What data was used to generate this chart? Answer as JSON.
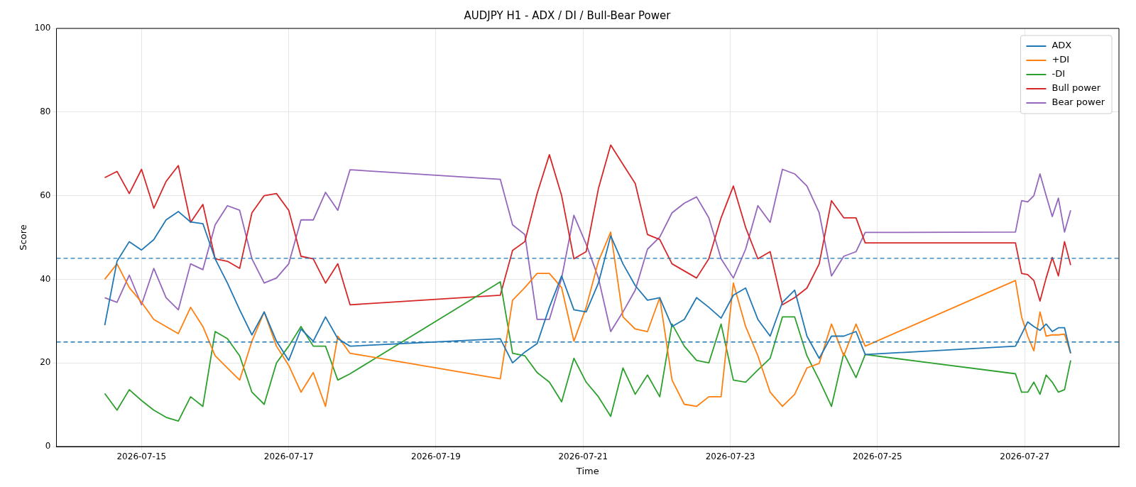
{
  "chart_data": {
    "type": "line",
    "title": "AUDJPY H1 - ADX / DI / Bull-Bear Power",
    "xlabel": "Time",
    "ylabel": "Score",
    "x": [
      "2026-07-14T12:00",
      "2026-07-14T16:00",
      "2026-07-14T20:00",
      "2026-07-15T00:00",
      "2026-07-15T04:00",
      "2026-07-15T08:00",
      "2026-07-15T12:00",
      "2026-07-15T16:00",
      "2026-07-15T20:00",
      "2026-07-16T00:00",
      "2026-07-16T04:00",
      "2026-07-16T08:00",
      "2026-07-16T12:00",
      "2026-07-16T16:00",
      "2026-07-16T20:00",
      "2026-07-17T00:00",
      "2026-07-17T04:00",
      "2026-07-17T08:00",
      "2026-07-17T12:00",
      "2026-07-17T16:00",
      "2026-07-17T20:00",
      "2026-07-19T21:00",
      "2026-07-20T01:00",
      "2026-07-20T05:00",
      "2026-07-20T09:00",
      "2026-07-20T13:00",
      "2026-07-20T17:00",
      "2026-07-20T21:00",
      "2026-07-21T01:00",
      "2026-07-21T05:00",
      "2026-07-21T09:00",
      "2026-07-21T13:00",
      "2026-07-21T17:00",
      "2026-07-21T21:00",
      "2026-07-22T01:00",
      "2026-07-22T05:00",
      "2026-07-22T09:00",
      "2026-07-22T13:00",
      "2026-07-22T17:00",
      "2026-07-22T21:00",
      "2026-07-23T01:00",
      "2026-07-23T05:00",
      "2026-07-23T09:00",
      "2026-07-23T13:00",
      "2026-07-23T17:00",
      "2026-07-23T21:00",
      "2026-07-24T01:00",
      "2026-07-24T05:00",
      "2026-07-24T09:00",
      "2026-07-24T13:00",
      "2026-07-24T17:00",
      "2026-07-24T20:00",
      "2026-07-26T21:00",
      "2026-07-26T23:00",
      "2026-07-27T01:00",
      "2026-07-27T03:00",
      "2026-07-27T05:00",
      "2026-07-27T07:00",
      "2026-07-27T09:00",
      "2026-07-27T11:00",
      "2026-07-27T13:00",
      "2026-07-27T15:00"
    ],
    "series": [
      {
        "name": "ADX",
        "color": "#1f77b4",
        "values": [
          29,
          44.3,
          49,
          47,
          49.5,
          54.2,
          56.2,
          53.7,
          53.3,
          44.9,
          39.1,
          32.7,
          26.7,
          32.2,
          25.2,
          20.6,
          28.1,
          25.2,
          31,
          25.8,
          24,
          25.8,
          20,
          22.6,
          24.6,
          33.3,
          40.8,
          32.7,
          32.2,
          39.1,
          50.4,
          43.7,
          38.5,
          35,
          35.6,
          28.7,
          30.4,
          35.6,
          33.3,
          30.7,
          36.2,
          37.9,
          30.4,
          26.4,
          34.5,
          37.4,
          26.4,
          21.1,
          26.4,
          26.4,
          27.5,
          22,
          24,
          26.9,
          29.8,
          28.7,
          27.8,
          29.3,
          27.5,
          28.4,
          28.4,
          22.3
        ]
      },
      {
        "name": "+DI",
        "color": "#ff7f0e",
        "values": [
          40,
          43.7,
          38,
          34.5,
          30.4,
          28.7,
          27,
          33.3,
          28.7,
          21.7,
          18.8,
          15.9,
          25.2,
          32.2,
          24,
          19.4,
          13,
          17.7,
          9.6,
          26.4,
          22.3,
          16.2,
          35,
          38,
          41.4,
          41.4,
          38,
          25.2,
          33.3,
          44.3,
          51.3,
          31,
          28.1,
          27.5,
          35.6,
          15.9,
          10.1,
          9.6,
          11.9,
          11.9,
          39.1,
          28.7,
          21.7,
          13,
          9.6,
          12.5,
          18.8,
          19.9,
          29.3,
          21.7,
          29.3,
          24,
          39.7,
          31,
          26.4,
          22.9,
          32.2,
          26.4,
          26.7,
          26.7,
          26.9,
          22.3
        ]
      },
      {
        "name": "-DI",
        "color": "#2ca02c",
        "values": [
          12.7,
          8.7,
          13.6,
          11,
          8.7,
          7,
          6.1,
          11.9,
          9.6,
          27.5,
          25.8,
          21.7,
          13,
          10.1,
          20,
          24,
          28.7,
          24,
          24,
          15.9,
          17.4,
          39.4,
          22.3,
          21.7,
          17.7,
          15.4,
          10.7,
          21.1,
          15.4,
          11.9,
          7.2,
          18.8,
          12.5,
          17.1,
          11.9,
          29.3,
          24,
          20.6,
          20,
          29.3,
          15.9,
          15.4,
          18.3,
          21.1,
          31,
          31,
          21.7,
          15.9,
          9.6,
          22.3,
          16.5,
          22,
          17.4,
          13,
          13,
          15.4,
          12.5,
          17.1,
          15.4,
          13,
          13.6,
          20.6
        ]
      },
      {
        "name": "Bull power",
        "color": "#d62728",
        "values": [
          64.3,
          65.8,
          60.5,
          66.3,
          57,
          63.4,
          67.2,
          53.6,
          57.9,
          44.9,
          44.3,
          42.6,
          55.9,
          60,
          60.5,
          56.5,
          45.5,
          44.9,
          39.1,
          43.7,
          33.9,
          36.2,
          46.9,
          49,
          60.5,
          69.8,
          60,
          44.9,
          46.6,
          61.7,
          72.1,
          67.5,
          62.9,
          50.7,
          49.5,
          43.7,
          42,
          40.3,
          44.9,
          54.7,
          62.3,
          52.4,
          44.9,
          46.6,
          33.9,
          35.6,
          37.9,
          43.7,
          58.8,
          54.7,
          54.7,
          48.7,
          48.7,
          41.4,
          41.1,
          39.7,
          34.8,
          40.3,
          45.2,
          40.8,
          49,
          43.4
        ]
      },
      {
        "name": "Bear power",
        "color": "#9467bd",
        "values": [
          35.6,
          34.5,
          41,
          33.9,
          42.6,
          35.6,
          32.7,
          43.7,
          42.3,
          53,
          57.6,
          56.5,
          44.9,
          39.1,
          40.3,
          43.7,
          54.2,
          54.2,
          60.8,
          56.5,
          66.2,
          63.9,
          53,
          50.7,
          30.4,
          30.4,
          40.3,
          55.3,
          48.4,
          40.3,
          27.5,
          32.2,
          37.4,
          47.2,
          50.1,
          55.9,
          58.2,
          59.7,
          54.7,
          44.9,
          40.3,
          47.2,
          57.6,
          53.6,
          66.3,
          65.2,
          62.3,
          55.9,
          40.8,
          45.5,
          46.6,
          51.2,
          51.3,
          58.8,
          58.5,
          60,
          65.2,
          60,
          55,
          59.4,
          51.3,
          56.5
        ]
      }
    ],
    "xlim": [
      "2026-07-13T20:15",
      "2026-07-28T06:45"
    ],
    "xticks": [
      "2026-07-15",
      "2026-07-17",
      "2026-07-19",
      "2026-07-21",
      "2026-07-23",
      "2026-07-25",
      "2026-07-27"
    ],
    "ylim": [
      0,
      100
    ],
    "yticks": [
      0,
      20,
      40,
      60,
      80,
      100
    ],
    "ref_lines": [
      {
        "axis": "y",
        "value": 45,
        "color": "#1f77b4",
        "line_style": "dashed"
      },
      {
        "axis": "y",
        "value": 25,
        "color": "#1f77b4",
        "line_style": "dashed"
      }
    ],
    "grid": true,
    "legend": "top right"
  }
}
